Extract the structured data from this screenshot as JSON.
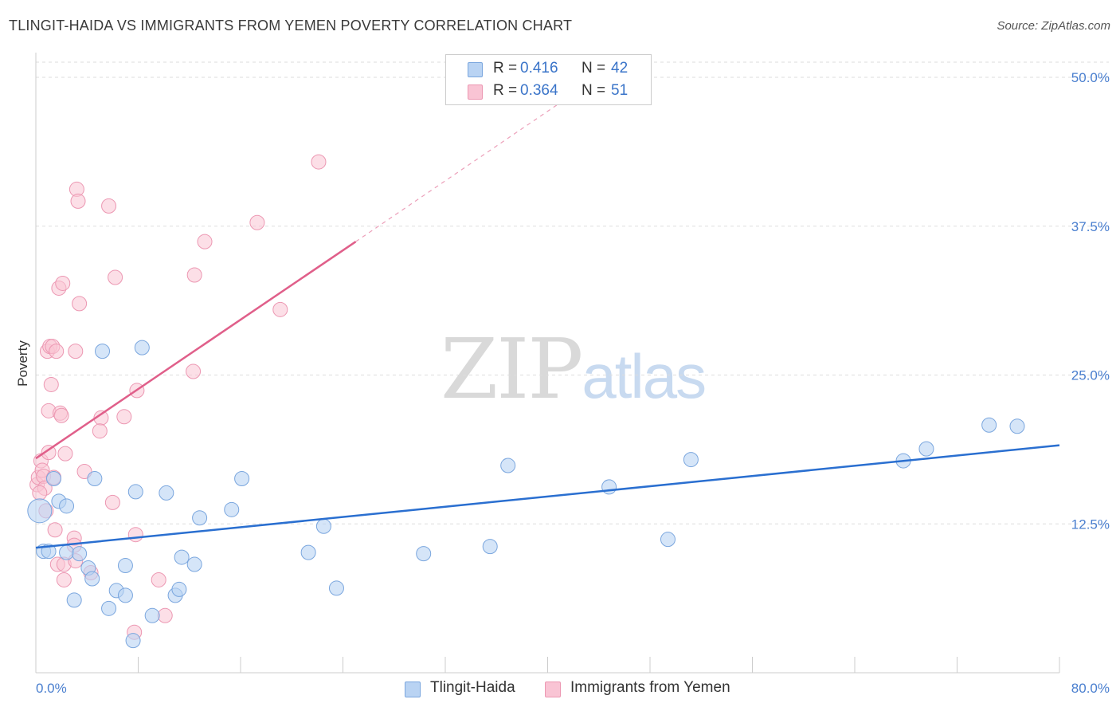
{
  "title": "TLINGIT-HAIDA VS IMMIGRANTS FROM YEMEN POVERTY CORRELATION CHART",
  "source": "Source: ZipAtlas.com",
  "watermark": {
    "zip": "ZIP",
    "atlas": "atlas"
  },
  "legend": {
    "series1": {
      "r_label": "R =",
      "r_value": "0.416",
      "n_label": "N =",
      "n_value": "42"
    },
    "series2": {
      "r_label": "R =",
      "r_value": "0.364",
      "n_label": "N =",
      "n_value": "51"
    }
  },
  "colors": {
    "blue_fill": "#b9d3f3",
    "blue_stroke": "#7aa6de",
    "blue_line": "#2a6fd0",
    "pink_fill": "#f9c4d4",
    "pink_stroke": "#ec97b2",
    "pink_line": "#e05f8a",
    "grid": "#dddddd",
    "axis_text": "#4a7fcf"
  },
  "chart_data": {
    "type": "scatter",
    "title": "TLINGIT-HAIDA VS IMMIGRANTS FROM YEMEN POVERTY CORRELATION CHART",
    "xlabel": "",
    "ylabel": "Poverty",
    "xlim": [
      0,
      80
    ],
    "ylim": [
      0,
      50
    ],
    "x_tick_labels": [
      "0.0%",
      "80.0%"
    ],
    "y_ticks": [
      12.5,
      25.0,
      37.5,
      50.0
    ],
    "y_tick_labels": [
      "12.5%",
      "25.0%",
      "37.5%",
      "50.0%"
    ],
    "grid": "horizontal dashed",
    "legend_position": "top-center",
    "series": [
      {
        "name": "Tlingit-Haida",
        "color": "#b9d3f3",
        "r": 0.416,
        "n": 42,
        "trend": {
          "x": [
            0,
            80
          ],
          "y": [
            10.5,
            19.1
          ]
        },
        "points": [
          [
            0.3,
            13.6
          ],
          [
            0.6,
            10.2
          ],
          [
            1.0,
            10.2
          ],
          [
            1.4,
            16.3
          ],
          [
            1.8,
            14.4
          ],
          [
            2.4,
            14.0
          ],
          [
            2.4,
            10.1
          ],
          [
            3.0,
            6.1
          ],
          [
            3.4,
            10.0
          ],
          [
            4.1,
            8.8
          ],
          [
            4.4,
            7.9
          ],
          [
            4.6,
            16.3
          ],
          [
            5.2,
            27.0
          ],
          [
            5.7,
            5.4
          ],
          [
            6.3,
            6.9
          ],
          [
            7.0,
            6.5
          ],
          [
            7.0,
            9.0
          ],
          [
            7.6,
            2.7
          ],
          [
            7.8,
            15.2
          ],
          [
            8.3,
            27.3
          ],
          [
            9.1,
            4.8
          ],
          [
            10.2,
            15.1
          ],
          [
            10.9,
            6.5
          ],
          [
            11.2,
            7.0
          ],
          [
            11.4,
            9.7
          ],
          [
            12.4,
            9.1
          ],
          [
            12.8,
            13.0
          ],
          [
            15.3,
            13.7
          ],
          [
            16.1,
            16.3
          ],
          [
            21.3,
            10.1
          ],
          [
            22.5,
            12.3
          ],
          [
            23.5,
            7.1
          ],
          [
            30.3,
            10.0
          ],
          [
            35.5,
            10.6
          ],
          [
            36.9,
            17.4
          ],
          [
            44.8,
            15.6
          ],
          [
            49.4,
            11.2
          ],
          [
            51.2,
            17.9
          ],
          [
            67.8,
            17.8
          ],
          [
            69.6,
            18.8
          ],
          [
            74.5,
            20.8
          ],
          [
            76.7,
            20.7
          ]
        ]
      },
      {
        "name": "Immigrants from Yemen",
        "color": "#f9c4d4",
        "r": 0.364,
        "n": 51,
        "trend_solid": {
          "x": [
            0,
            25
          ],
          "y": [
            18.0,
            36.2
          ]
        },
        "trend_dashed": {
          "x": [
            25,
            45
          ],
          "y": [
            36.2,
            50.8
          ]
        },
        "points": [
          [
            0.1,
            15.8
          ],
          [
            0.2,
            16.4
          ],
          [
            0.4,
            17.8
          ],
          [
            0.5,
            17.0
          ],
          [
            0.6,
            16.5
          ],
          [
            0.7,
            15.5
          ],
          [
            0.8,
            13.6
          ],
          [
            0.9,
            27.0
          ],
          [
            1.0,
            18.5
          ],
          [
            1.0,
            22.0
          ],
          [
            1.1,
            27.4
          ],
          [
            1.2,
            24.2
          ],
          [
            1.3,
            27.4
          ],
          [
            1.4,
            16.4
          ],
          [
            1.5,
            12.0
          ],
          [
            1.6,
            27.0
          ],
          [
            1.7,
            9.1
          ],
          [
            1.8,
            32.3
          ],
          [
            1.9,
            21.8
          ],
          [
            2.0,
            21.6
          ],
          [
            2.1,
            32.7
          ],
          [
            2.2,
            9.1
          ],
          [
            2.2,
            7.8
          ],
          [
            2.3,
            18.4
          ],
          [
            3.0,
            11.3
          ],
          [
            3.0,
            10.7
          ],
          [
            3.1,
            9.4
          ],
          [
            3.1,
            27.0
          ],
          [
            3.2,
            40.6
          ],
          [
            3.3,
            39.6
          ],
          [
            3.4,
            31.0
          ],
          [
            3.8,
            16.9
          ],
          [
            4.3,
            8.4
          ],
          [
            5.1,
            21.4
          ],
          [
            5.0,
            20.3
          ],
          [
            5.7,
            39.2
          ],
          [
            6.0,
            14.3
          ],
          [
            6.2,
            33.2
          ],
          [
            6.9,
            21.5
          ],
          [
            7.7,
            3.4
          ],
          [
            7.8,
            11.6
          ],
          [
            7.9,
            23.7
          ],
          [
            9.6,
            7.8
          ],
          [
            10.1,
            4.8
          ],
          [
            12.3,
            25.3
          ],
          [
            12.4,
            33.4
          ],
          [
            13.2,
            36.2
          ],
          [
            17.3,
            37.8
          ],
          [
            19.1,
            30.5
          ],
          [
            22.1,
            42.9
          ],
          [
            0.3,
            15.1
          ]
        ]
      }
    ]
  },
  "bottom_legend": {
    "series1_label": "Tlingit-Haida",
    "series2_label": "Immigrants from Yemen"
  }
}
